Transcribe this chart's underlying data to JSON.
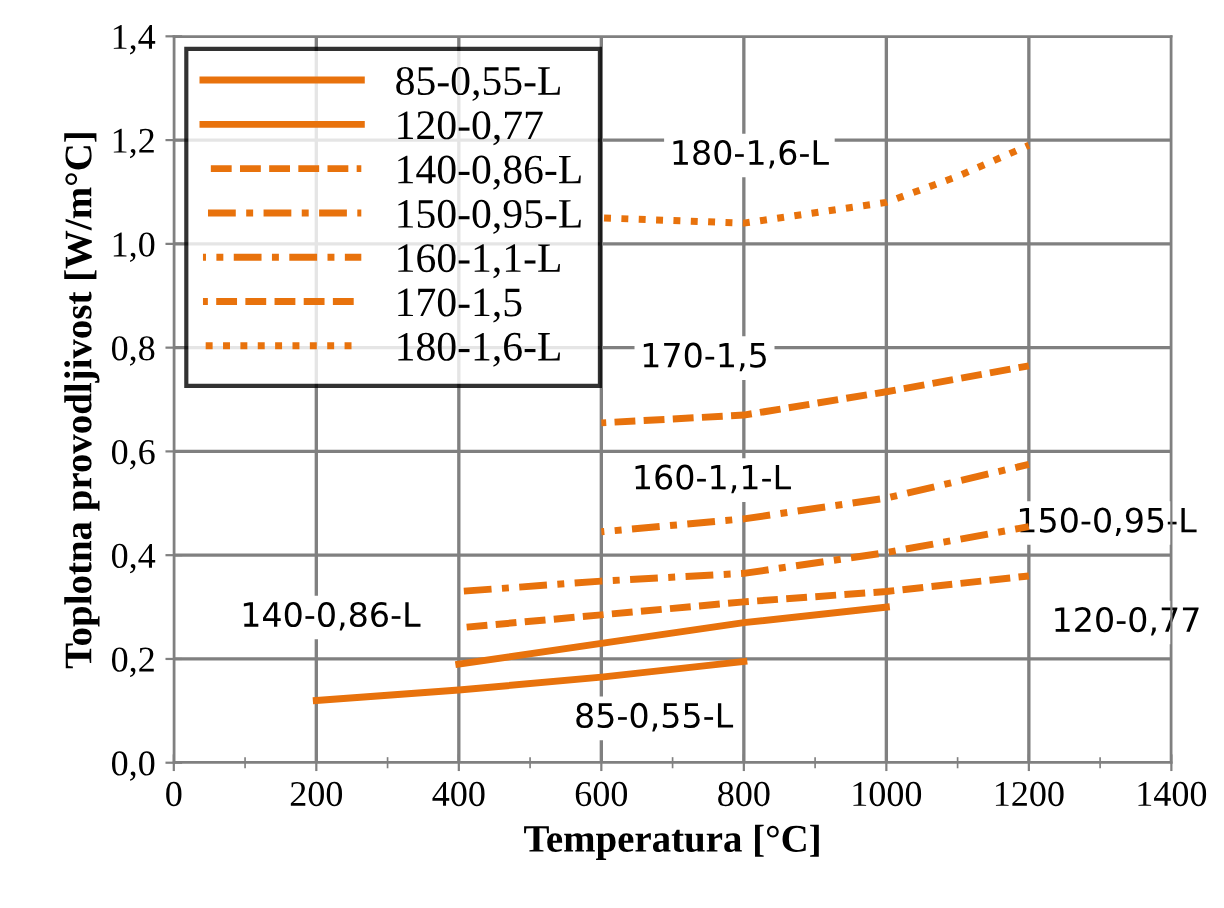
{
  "chart_data": {
    "type": "line",
    "xlabel": "Temperatura [°C]",
    "ylabel": "Toplotna provodljivost [W/m°C]",
    "xlim": [
      0,
      1400
    ],
    "xticks": [
      0,
      200,
      400,
      600,
      800,
      1000,
      1200,
      1400
    ],
    "ylim": [
      0,
      1.4
    ],
    "yticks": [
      {
        "value": 0,
        "label": "0,0"
      },
      {
        "value": 0.2,
        "label": "0,2"
      },
      {
        "value": 0.4,
        "label": "0,4"
      },
      {
        "value": 0.6,
        "label": "0,6"
      },
      {
        "value": 0.8,
        "label": "0,8"
      },
      {
        "value": 1.0,
        "label": "1,0"
      },
      {
        "value": 1.2,
        "label": "1,2"
      },
      {
        "value": 1.4,
        "label": "1,4"
      }
    ],
    "grid": true,
    "legend": "top left",
    "marker": "none",
    "series": [
      {
        "name": "85-0,55-L",
        "color": "#e8720c",
        "line_style": "solid",
        "x": [
          200,
          400,
          600,
          800
        ],
        "values": [
          0.12,
          0.14,
          0.165,
          0.195
        ]
      },
      {
        "name": "120-0,77",
        "color": "#e8720c",
        "line_style": "solid",
        "x": [
          400,
          600,
          800,
          1000
        ],
        "values": [
          0.19,
          0.23,
          0.27,
          0.3
        ]
      },
      {
        "name": "140-0,86-L",
        "color": "#e8720c",
        "line_style": "dashed",
        "x": [
          400,
          600,
          800,
          1000,
          1200
        ],
        "values": [
          0.26,
          0.285,
          0.31,
          0.33,
          0.36
        ]
      },
      {
        "name": "150-0,95-L",
        "color": "#e8720c",
        "line_style": "dashdot",
        "x": [
          400,
          600,
          800,
          1000,
          1200
        ],
        "values": [
          0.33,
          0.35,
          0.365,
          0.405,
          0.455
        ]
      },
      {
        "name": "160-1,1-L",
        "color": "#e8720c",
        "line_style": "dashdot",
        "x": [
          600,
          800,
          1000,
          1200
        ],
        "values": [
          0.445,
          0.47,
          0.51,
          0.575
        ]
      },
      {
        "name": "170-1,5",
        "color": "#e8720c",
        "line_style": "dashed",
        "x": [
          600,
          800,
          1000,
          1200
        ],
        "values": [
          0.655,
          0.67,
          0.715,
          0.765
        ]
      },
      {
        "name": "180-1,6-L",
        "color": "#e8720c",
        "line_style": "dotted",
        "x": [
          600,
          800,
          1000,
          1100,
          1200
        ],
        "values": [
          1.05,
          1.04,
          1.08,
          1.13,
          1.19
        ]
      }
    ],
    "annotations": [
      "180-1,6-L",
      "170-1,5",
      "160-1,1-L",
      "150-0,95-L",
      "140-0,86-L",
      "120-0,77",
      "85-0,55-L"
    ]
  }
}
